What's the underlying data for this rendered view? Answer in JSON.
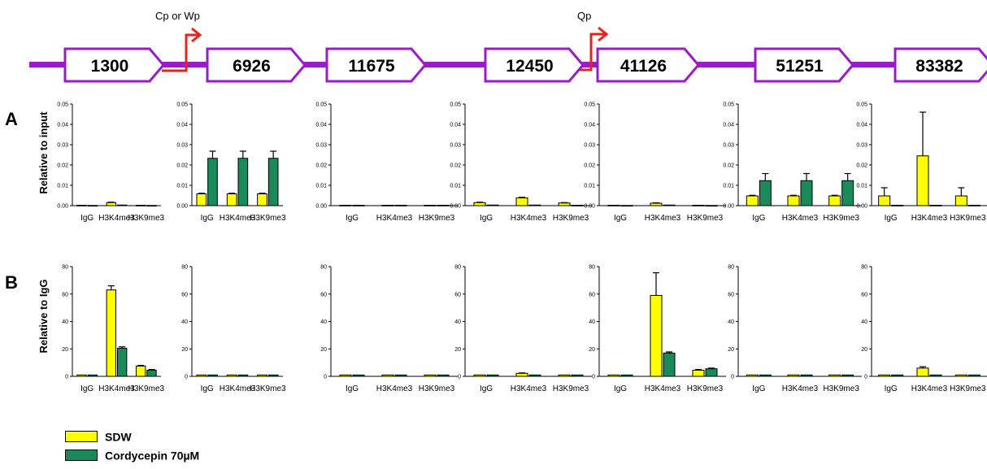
{
  "colors": {
    "sdw": "#ffff00",
    "cordycepin": "#1b8a5a",
    "genome_line": "#9a1bc8",
    "promoter_arrow": "#e8231e",
    "axis": "#000000"
  },
  "genome": {
    "segments": [
      "1300",
      "6926",
      "11675",
      "12450",
      "41126",
      "51251",
      "83382"
    ],
    "promoters": [
      "Cp or Wp",
      "Qp"
    ]
  },
  "panels": {
    "A": {
      "letter": "A",
      "ylabel": "Relative to input"
    },
    "B": {
      "letter": "B",
      "ylabel": "Relative to IgG"
    }
  },
  "legend": {
    "items": [
      {
        "label": "SDW",
        "color": "#ffff00"
      },
      {
        "label": "Cordycepin 70µM",
        "color": "#1b8a5a"
      }
    ]
  },
  "chart_data": [
    {
      "type": "bar",
      "row": "A",
      "segment": "1300",
      "categories": [
        "IgG",
        "H3K4me3",
        "H3K9me3"
      ],
      "ylim": [
        0,
        0.05
      ],
      "yticks": [
        "0.00",
        "0.01",
        "0.02",
        "0.03",
        "0.04",
        "0.05"
      ],
      "series": [
        {
          "name": "SDW",
          "values": [
            0.0002,
            0.0015,
            0.0002
          ],
          "errors": [
            0,
            0.0002,
            0
          ]
        },
        {
          "name": "Cordycepin 70µM",
          "values": [
            0.0001,
            0.0003,
            0.0001
          ],
          "errors": [
            0,
            0,
            0
          ]
        }
      ]
    },
    {
      "type": "bar",
      "row": "A",
      "segment": "6926",
      "categories": [
        "IgG",
        "H3K4me3",
        "H3K9me3"
      ],
      "ylim": [
        0,
        0.05
      ],
      "yticks": [
        "0.00",
        "0.01",
        "0.02",
        "0.03",
        "0.04",
        "0.05"
      ],
      "series": [
        {
          "name": "SDW",
          "values": [
            0.0058,
            0.0058,
            0.0058
          ],
          "errors": [
            0.0003,
            0.0003,
            0.0003
          ]
        },
        {
          "name": "Cordycepin 70µM",
          "values": [
            0.0233,
            0.0233,
            0.0233
          ],
          "errors": [
            0.0035,
            0.0035,
            0.0035
          ]
        }
      ]
    },
    {
      "type": "bar",
      "row": "A",
      "segment": "11675",
      "categories": [
        "IgG",
        "H3K4me3",
        "H3K9me3"
      ],
      "ylim": [
        0,
        0.05
      ],
      "yticks": [
        "0.00",
        "0.01",
        "0.02",
        "0.03",
        "0.04",
        "0.05"
      ],
      "series": [
        {
          "name": "SDW",
          "values": [
            0.0002,
            0.0002,
            0.0002
          ],
          "errors": [
            0,
            0,
            0
          ]
        },
        {
          "name": "Cordycepin 70µM",
          "values": [
            0.0002,
            0.0002,
            0.0002
          ],
          "errors": [
            0,
            0,
            0
          ]
        }
      ]
    },
    {
      "type": "bar",
      "row": "A",
      "segment": "12450",
      "categories": [
        "IgG",
        "H3K4me3",
        "H3K9me3"
      ],
      "ylim": [
        0,
        0.05
      ],
      "yticks": [
        "0.00",
        "0.01",
        "0.02",
        "0.03",
        "0.04",
        "0.05"
      ],
      "series": [
        {
          "name": "SDW",
          "values": [
            0.0015,
            0.0038,
            0.0013
          ],
          "errors": [
            0.0002,
            0.0003,
            0.0002
          ]
        },
        {
          "name": "Cordycepin 70µM",
          "values": [
            0.0003,
            0.0003,
            0.0002
          ],
          "errors": [
            0,
            0,
            0
          ]
        }
      ]
    },
    {
      "type": "bar",
      "row": "A",
      "segment": "41126",
      "categories": [
        "IgG",
        "H3K4me3",
        "H3K9me3"
      ],
      "ylim": [
        0,
        0.05
      ],
      "yticks": [
        "0.00",
        "0.01",
        "0.02",
        "0.03",
        "0.04",
        "0.05"
      ],
      "series": [
        {
          "name": "SDW",
          "values": [
            0.0002,
            0.0012,
            0.0002
          ],
          "errors": [
            0,
            0.0002,
            0
          ]
        },
        {
          "name": "Cordycepin 70µM",
          "values": [
            0.0001,
            0.0003,
            0.0001
          ],
          "errors": [
            0,
            0,
            0
          ]
        }
      ]
    },
    {
      "type": "bar",
      "row": "A",
      "segment": "51251",
      "categories": [
        "IgG",
        "H3K4me3",
        "H3K9me3"
      ],
      "ylim": [
        0,
        0.05
      ],
      "yticks": [
        "0.00",
        "0.01",
        "0.02",
        "0.03",
        "0.04",
        "0.05"
      ],
      "series": [
        {
          "name": "SDW",
          "values": [
            0.0048,
            0.0048,
            0.0048
          ],
          "errors": [
            0.0003,
            0.0003,
            0.0003
          ]
        },
        {
          "name": "Cordycepin 70µM",
          "values": [
            0.0123,
            0.0123,
            0.0123
          ],
          "errors": [
            0.0035,
            0.0035,
            0.0035
          ]
        }
      ]
    },
    {
      "type": "bar",
      "row": "A",
      "segment": "83382",
      "categories": [
        "IgG",
        "H3K4me3",
        "H3K9me3"
      ],
      "ylim": [
        0,
        0.05
      ],
      "yticks": [
        "0.00",
        "0.01",
        "0.02",
        "0.03",
        "0.04",
        "0.05"
      ],
      "series": [
        {
          "name": "SDW",
          "values": [
            0.0048,
            0.0245,
            0.0048
          ],
          "errors": [
            0.004,
            0.0215,
            0.004
          ]
        },
        {
          "name": "Cordycepin 70µM",
          "values": [
            0.0002,
            0.0002,
            0.0002
          ],
          "errors": [
            0,
            0,
            0
          ]
        }
      ]
    },
    {
      "type": "bar",
      "row": "B",
      "segment": "1300",
      "categories": [
        "IgG",
        "H3K4me3",
        "H3K9me3"
      ],
      "ylim": [
        0,
        80
      ],
      "yticks": [
        "0",
        "20",
        "40",
        "60",
        "80"
      ],
      "series": [
        {
          "name": "SDW",
          "values": [
            1,
            63,
            7.5
          ],
          "errors": [
            0,
            3,
            0.5
          ]
        },
        {
          "name": "Cordycepin 70µM",
          "values": [
            1,
            20.5,
            4.5
          ],
          "errors": [
            0,
            1,
            0.5
          ]
        }
      ]
    },
    {
      "type": "bar",
      "row": "B",
      "segment": "6926",
      "categories": [
        "IgG",
        "H3K4me3",
        "H3K9me3"
      ],
      "ylim": [
        0,
        80
      ],
      "yticks": [
        "0",
        "20",
        "40",
        "60",
        "80"
      ],
      "series": [
        {
          "name": "SDW",
          "values": [
            1,
            1,
            1
          ],
          "errors": [
            0,
            0,
            0
          ]
        },
        {
          "name": "Cordycepin 70µM",
          "values": [
            1,
            1,
            1
          ],
          "errors": [
            0,
            0,
            0
          ]
        }
      ]
    },
    {
      "type": "bar",
      "row": "B",
      "segment": "11675",
      "categories": [
        "IgG",
        "H3K4me3",
        "H3K9me3"
      ],
      "ylim": [
        0,
        80
      ],
      "yticks": [
        "0",
        "20",
        "40",
        "60",
        "80"
      ],
      "series": [
        {
          "name": "SDW",
          "values": [
            1,
            1,
            1
          ],
          "errors": [
            0,
            0,
            0
          ]
        },
        {
          "name": "Cordycepin 70µM",
          "values": [
            1,
            1,
            1
          ],
          "errors": [
            0,
            0,
            0
          ]
        }
      ]
    },
    {
      "type": "bar",
      "row": "B",
      "segment": "12450",
      "categories": [
        "IgG",
        "H3K4me3",
        "H3K9me3"
      ],
      "ylim": [
        0,
        80
      ],
      "yticks": [
        "0",
        "20",
        "40",
        "60",
        "80"
      ],
      "series": [
        {
          "name": "SDW",
          "values": [
            1,
            2.2,
            1
          ],
          "errors": [
            0,
            0.3,
            0
          ]
        },
        {
          "name": "Cordycepin 70µM",
          "values": [
            1,
            1,
            1
          ],
          "errors": [
            0,
            0,
            0
          ]
        }
      ]
    },
    {
      "type": "bar",
      "row": "B",
      "segment": "41126",
      "categories": [
        "IgG",
        "H3K4me3",
        "H3K9me3"
      ],
      "ylim": [
        0,
        80
      ],
      "yticks": [
        "0",
        "20",
        "40",
        "60",
        "80"
      ],
      "series": [
        {
          "name": "SDW",
          "values": [
            1,
            59,
            4.5
          ],
          "errors": [
            0,
            16.5,
            0.5
          ]
        },
        {
          "name": "Cordycepin 70µM",
          "values": [
            1,
            17,
            5.5
          ],
          "errors": [
            0,
            0.8,
            0.5
          ]
        }
      ]
    },
    {
      "type": "bar",
      "row": "B",
      "segment": "51251",
      "categories": [
        "IgG",
        "H3K4me3",
        "H3K9me3"
      ],
      "ylim": [
        0,
        80
      ],
      "yticks": [
        "0",
        "20",
        "40",
        "60",
        "80"
      ],
      "series": [
        {
          "name": "SDW",
          "values": [
            1,
            1,
            1
          ],
          "errors": [
            0,
            0,
            0
          ]
        },
        {
          "name": "Cordycepin 70µM",
          "values": [
            1,
            1,
            1
          ],
          "errors": [
            0,
            0,
            0
          ]
        }
      ]
    },
    {
      "type": "bar",
      "row": "B",
      "segment": "83382",
      "categories": [
        "IgG",
        "H3K4me3",
        "H3K9me3"
      ],
      "ylim": [
        0,
        80
      ],
      "yticks": [
        "0",
        "20",
        "40",
        "60",
        "80"
      ],
      "series": [
        {
          "name": "SDW",
          "values": [
            1,
            6,
            1
          ],
          "errors": [
            0,
            1,
            0
          ]
        },
        {
          "name": "Cordycepin 70µM",
          "values": [
            1,
            1,
            1
          ],
          "errors": [
            0,
            0,
            0
          ]
        }
      ]
    }
  ]
}
